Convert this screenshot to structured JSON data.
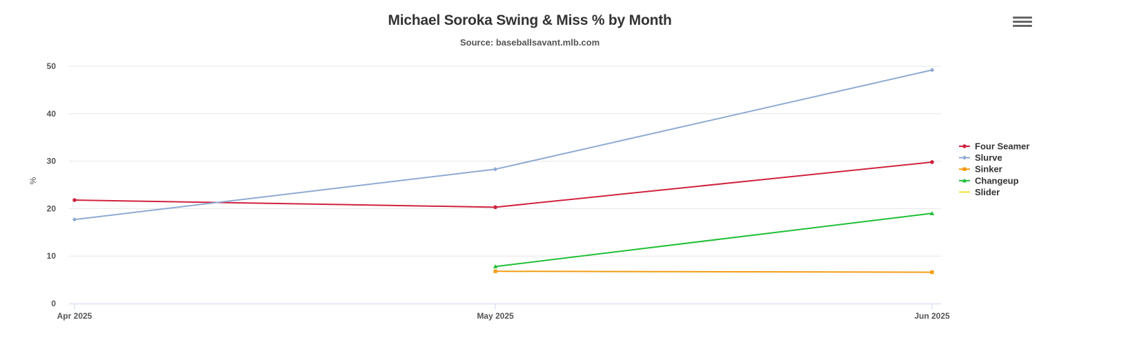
{
  "header": {
    "menu_icon": "hamburger-menu-icon"
  },
  "chart_data": {
    "type": "line",
    "title": "Michael Soroka Swing & Miss % by Month",
    "subtitle": "Source: baseballsavant.mlb.com",
    "xlabel": "",
    "ylabel": "%",
    "categories": [
      "Apr 2025",
      "May 2025",
      "Jun 2025"
    ],
    "ylim": [
      0,
      50
    ],
    "yticks": [
      0,
      10,
      20,
      30,
      40,
      50
    ],
    "grid": true,
    "legend_position": "right",
    "series": [
      {
        "name": "Four Seamer",
        "color": "#d0223f",
        "marker": "circle",
        "values": [
          21.8,
          20.3,
          29.8
        ]
      },
      {
        "name": "Slurve",
        "color": "#8eaad3",
        "marker": "diamond",
        "values": [
          17.7,
          28.3,
          49.2
        ]
      },
      {
        "name": "Sinker",
        "color": "#f39c12",
        "marker": "square",
        "values": [
          null,
          6.8,
          6.6
        ]
      },
      {
        "name": "Changeup",
        "color": "#1fbf35",
        "marker": "triangle",
        "values": [
          null,
          7.8,
          19.0
        ]
      },
      {
        "name": "Slider",
        "color": "#f2e32a",
        "marker": "none",
        "values": [
          null,
          null,
          null
        ]
      }
    ]
  }
}
